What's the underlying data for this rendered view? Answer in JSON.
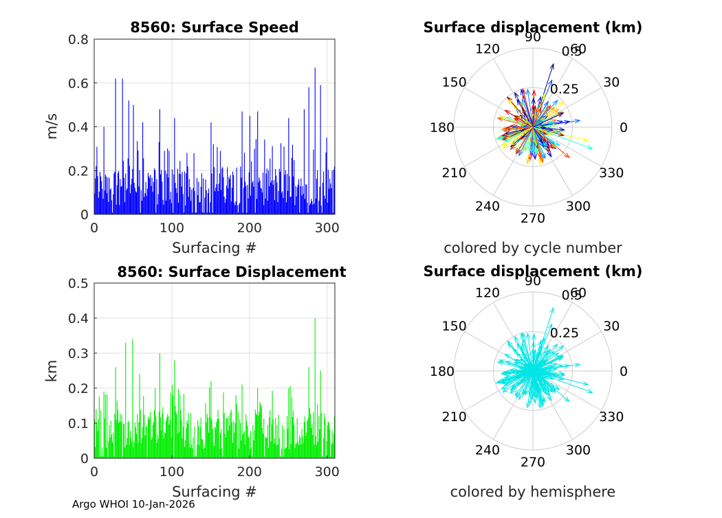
{
  "footer": "Argo WHOI 10-Jan-2026",
  "chart_data": [
    {
      "type": "bar",
      "id": "speed",
      "title": "8560: Surface Speed",
      "xlabel": "Surfacing #",
      "ylabel": "m/s",
      "xlim": [
        0,
        310
      ],
      "ylim": [
        0,
        0.8
      ],
      "xticks": [
        0,
        100,
        200,
        300
      ],
      "yticks": [
        0,
        0.2,
        0.4,
        0.6,
        0.8
      ],
      "ytick_labels": [
        "0",
        "0.2",
        "0.4",
        "0.6",
        "0.8"
      ],
      "grid": true,
      "color": "#0000ff",
      "peaks": [
        [
          2,
          0.22
        ],
        [
          12,
          0.4
        ],
        [
          27,
          0.62
        ],
        [
          36,
          0.62
        ],
        [
          44,
          0.52
        ],
        [
          50,
          0.5
        ],
        [
          62,
          0.42
        ],
        [
          84,
          0.48
        ],
        [
          103,
          0.44
        ],
        [
          150,
          0.42
        ],
        [
          190,
          0.47
        ],
        [
          200,
          0.45
        ],
        [
          210,
          0.47
        ],
        [
          250,
          0.44
        ],
        [
          270,
          0.48
        ],
        [
          276,
          0.58
        ],
        [
          284,
          0.67
        ],
        [
          291,
          0.59
        ],
        [
          299,
          0.35
        ],
        [
          306,
          0.2
        ]
      ]
    },
    {
      "type": "bar",
      "id": "displacement",
      "title": "8560: Surface Displacement",
      "xlabel": "Surfacing #",
      "ylabel": "km",
      "xlim": [
        0,
        310
      ],
      "ylim": [
        0,
        0.5
      ],
      "xticks": [
        0,
        100,
        200,
        300
      ],
      "yticks": [
        0,
        0.1,
        0.2,
        0.3,
        0.4,
        0.5
      ],
      "ytick_labels": [
        "0",
        "0.1",
        "0.2",
        "0.3",
        "0.4",
        "0.5"
      ],
      "grid": true,
      "color": "#00ee00",
      "peaks": [
        [
          2,
          0.14
        ],
        [
          12,
          0.19
        ],
        [
          27,
          0.26
        ],
        [
          40,
          0.33
        ],
        [
          49,
          0.34
        ],
        [
          58,
          0.24
        ],
        [
          84,
          0.3
        ],
        [
          103,
          0.28
        ],
        [
          150,
          0.22
        ],
        [
          190,
          0.21
        ],
        [
          210,
          0.2
        ],
        [
          250,
          0.2
        ],
        [
          276,
          0.26
        ],
        [
          284,
          0.4
        ],
        [
          291,
          0.25
        ],
        [
          306,
          0.08
        ]
      ]
    },
    {
      "type": "polar",
      "id": "polar-cycle",
      "title": "Surface displacement (km)",
      "subtitle": "colored by cycle number",
      "rmax": 0.5,
      "rticks": [
        0.25,
        0.5
      ],
      "rtick_labels": [
        "0.25",
        "0.5"
      ],
      "angle_labels": [
        "0",
        "30",
        "60",
        "90",
        "120",
        "150",
        "180",
        "210",
        "240",
        "270",
        "300",
        "330"
      ],
      "coloring": "cycle",
      "vectors": [
        [
          72,
          0.42
        ],
        [
          68,
          0.32
        ],
        [
          -20,
          0.4
        ],
        [
          -14,
          0.36
        ],
        [
          -40,
          0.3
        ],
        [
          -58,
          0.22
        ],
        [
          8,
          0.3
        ],
        [
          160,
          0.18
        ],
        [
          200,
          0.22
        ],
        [
          225,
          0.2
        ],
        [
          120,
          0.2
        ],
        [
          98,
          0.24
        ]
      ]
    },
    {
      "type": "polar",
      "id": "polar-hemi",
      "title": "Surface displacement (km)",
      "subtitle": "colored by hemisphere",
      "rmax": 0.5,
      "rticks": [
        0.25,
        0.5
      ],
      "rtick_labels": [
        "0.25",
        "0.5"
      ],
      "angle_labels": [
        "0",
        "30",
        "60",
        "90",
        "120",
        "150",
        "180",
        "210",
        "240",
        "270",
        "300",
        "330"
      ],
      "coloring": "hemisphere",
      "color": "#00e5e5",
      "vectors": [
        [
          72,
          0.42
        ],
        [
          68,
          0.32
        ],
        [
          -20,
          0.4
        ],
        [
          -14,
          0.36
        ],
        [
          -40,
          0.3
        ],
        [
          -58,
          0.22
        ],
        [
          8,
          0.3
        ],
        [
          160,
          0.18
        ],
        [
          200,
          0.22
        ],
        [
          225,
          0.2
        ],
        [
          120,
          0.2
        ],
        [
          98,
          0.24
        ]
      ]
    }
  ]
}
